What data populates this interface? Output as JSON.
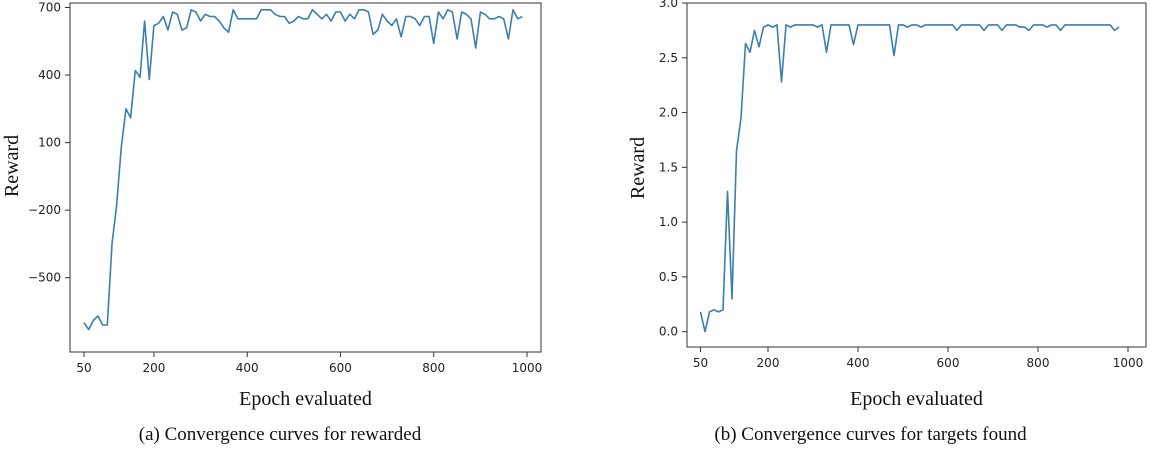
{
  "chart_data": [
    {
      "type": "line",
      "xlabel": "Epoch evaluated",
      "ylabel": "Reward",
      "caption": "(a) Convergence curves for rewarded",
      "xlim": [
        20,
        1030
      ],
      "ylim": [
        -830,
        720
      ],
      "xticks": [
        50,
        200,
        400,
        600,
        800,
        1000
      ],
      "yticks": [
        -500,
        -200,
        100,
        400,
        700
      ],
      "xtick_labels": [
        "50",
        "200",
        "400",
        "600",
        "800",
        "1000"
      ],
      "ytick_labels": [
        "−500",
        "−200",
        "100",
        "400",
        "700"
      ],
      "color": "#3a7fb0",
      "grid": false,
      "series": [
        {
          "x": [
            50,
            60,
            70,
            80,
            90,
            100,
            110,
            120,
            130,
            140,
            150,
            160,
            170,
            180,
            190,
            200,
            210,
            220,
            230,
            240,
            250,
            260,
            270,
            280,
            290,
            300,
            310,
            320,
            330,
            340,
            350,
            360,
            370,
            380,
            390,
            400,
            410,
            420,
            430,
            440,
            450,
            460,
            470,
            480,
            490,
            500,
            510,
            520,
            530,
            540,
            550,
            560,
            570,
            580,
            590,
            600,
            610,
            620,
            630,
            640,
            650,
            660,
            670,
            680,
            690,
            700,
            710,
            720,
            730,
            740,
            750,
            760,
            770,
            780,
            790,
            800,
            810,
            820,
            830,
            840,
            850,
            860,
            870,
            880,
            890,
            900,
            910,
            920,
            930,
            940,
            950,
            960,
            970,
            980,
            990
          ],
          "y": [
            -700,
            -730,
            -690,
            -670,
            -710,
            -710,
            -350,
            -180,
            80,
            250,
            210,
            420,
            390,
            640,
            380,
            620,
            630,
            660,
            600,
            680,
            670,
            600,
            610,
            690,
            680,
            640,
            670,
            660,
            660,
            640,
            610,
            590,
            690,
            650,
            650,
            650,
            650,
            650,
            690,
            690,
            690,
            670,
            660,
            660,
            630,
            640,
            660,
            650,
            650,
            690,
            670,
            650,
            670,
            640,
            680,
            680,
            640,
            670,
            650,
            690,
            690,
            680,
            580,
            600,
            670,
            640,
            620,
            650,
            570,
            660,
            660,
            650,
            620,
            660,
            660,
            540,
            680,
            650,
            690,
            680,
            560,
            680,
            670,
            650,
            520,
            680,
            670,
            650,
            650,
            660,
            650,
            560,
            690,
            650,
            660
          ]
        }
      ]
    },
    {
      "type": "line",
      "xlabel": "Epoch evaluated",
      "ylabel": "Reward",
      "caption": "(b) Convergence curves for targets found",
      "xlim": [
        20,
        1040
      ],
      "ylim": [
        -0.14,
        3.0
      ],
      "xticks": [
        50,
        200,
        400,
        600,
        800,
        1000
      ],
      "yticks": [
        0.0,
        0.5,
        1.0,
        1.5,
        2.0,
        2.5,
        3.0
      ],
      "xtick_labels": [
        "50",
        "200",
        "400",
        "600",
        "800",
        "1000"
      ],
      "ytick_labels": [
        "0.0",
        "0.5",
        "1.0",
        "1.5",
        "2.0",
        "2.5",
        "3.0"
      ],
      "color": "#3a7fb0",
      "grid": false,
      "series": [
        {
          "x": [
            50,
            60,
            70,
            80,
            90,
            100,
            110,
            120,
            130,
            140,
            150,
            160,
            170,
            180,
            190,
            200,
            210,
            220,
            230,
            240,
            250,
            260,
            270,
            280,
            290,
            300,
            310,
            320,
            330,
            340,
            350,
            360,
            370,
            380,
            390,
            400,
            410,
            420,
            430,
            440,
            450,
            460,
            470,
            480,
            490,
            500,
            510,
            520,
            530,
            540,
            550,
            560,
            570,
            580,
            590,
            600,
            610,
            620,
            630,
            640,
            650,
            660,
            670,
            680,
            690,
            700,
            710,
            720,
            730,
            740,
            750,
            760,
            770,
            780,
            790,
            800,
            810,
            820,
            830,
            840,
            850,
            860,
            870,
            880,
            890,
            900,
            910,
            920,
            930,
            940,
            950,
            960,
            970,
            980
          ],
          "y": [
            0.18,
            0.0,
            0.18,
            0.2,
            0.18,
            0.2,
            1.28,
            0.3,
            1.65,
            1.95,
            2.63,
            2.55,
            2.75,
            2.6,
            2.78,
            2.8,
            2.78,
            2.8,
            2.28,
            2.8,
            2.78,
            2.8,
            2.8,
            2.8,
            2.8,
            2.8,
            2.78,
            2.8,
            2.55,
            2.8,
            2.8,
            2.8,
            2.8,
            2.8,
            2.62,
            2.8,
            2.8,
            2.8,
            2.8,
            2.8,
            2.8,
            2.8,
            2.8,
            2.52,
            2.8,
            2.8,
            2.78,
            2.8,
            2.8,
            2.78,
            2.8,
            2.8,
            2.8,
            2.8,
            2.8,
            2.8,
            2.8,
            2.75,
            2.8,
            2.8,
            2.8,
            2.8,
            2.8,
            2.75,
            2.8,
            2.8,
            2.8,
            2.75,
            2.8,
            2.8,
            2.8,
            2.78,
            2.78,
            2.75,
            2.8,
            2.8,
            2.8,
            2.78,
            2.8,
            2.8,
            2.75,
            2.8,
            2.8,
            2.8,
            2.8,
            2.8,
            2.8,
            2.8,
            2.8,
            2.8,
            2.8,
            2.8,
            2.75,
            2.78
          ]
        }
      ]
    }
  ]
}
